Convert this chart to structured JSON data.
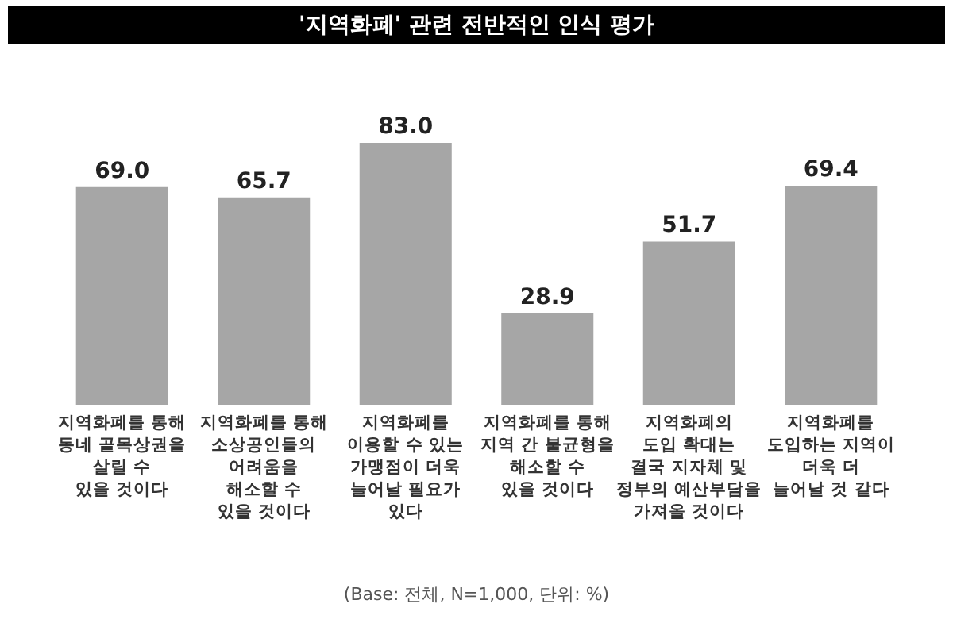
{
  "chart_data": {
    "type": "bar",
    "title": "'지역화폐' 관련 전반적인 인식 평가",
    "categories": [
      "지역화폐를 통해\n동네 골목상권을\n살릴 수\n있을 것이다",
      "지역화폐를 통해\n소상공인들의\n어려움을\n해소할 수\n있을 것이다",
      "지역화폐를\n이용할 수 있는\n가맹점이 더욱\n늘어날 필요가\n있다",
      "지역화폐를 통해\n지역 간 불균형을\n해소할 수\n있을 것이다",
      "지역화폐의\n도입 확대는\n결국 지자체 및\n정부의 예산부담을\n가져올 것이다",
      "지역화폐를\n도입하는 지역이\n더욱 더\n늘어날 것 같다"
    ],
    "values": [
      69.0,
      65.7,
      83.0,
      28.9,
      51.7,
      69.4
    ],
    "value_labels": [
      "69.0",
      "65.7",
      "83.0",
      "28.9",
      "51.7",
      "69.4"
    ],
    "color": "#a6a6a6",
    "annotations": [
      "(Base: 전체, N=1,000, 단위: %)"
    ],
    "grid": false
  }
}
